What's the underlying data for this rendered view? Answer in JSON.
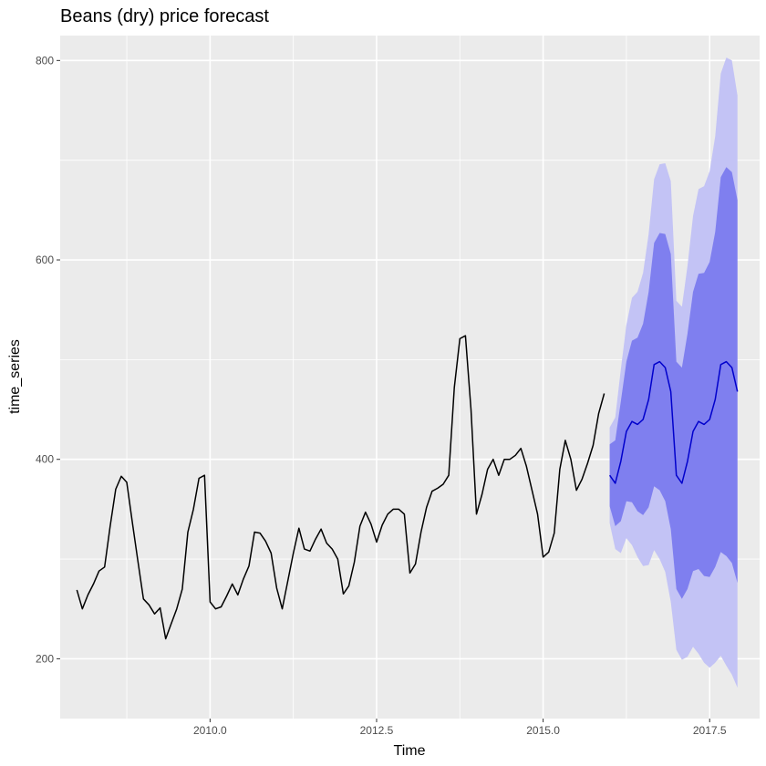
{
  "chart_data": {
    "type": "line",
    "title": "Beans (dry) price forecast",
    "xlabel": "Time",
    "ylabel": "time_series",
    "xlim": [
      2007.75,
      2018.25
    ],
    "ylim": [
      140,
      825
    ],
    "x_ticks": [
      2010.0,
      2012.5,
      2015.0,
      2017.5
    ],
    "x_tick_labels": [
      "2010.0",
      "2012.5",
      "2015.0",
      "2017.5"
    ],
    "y_ticks": [
      200,
      400,
      600,
      800
    ],
    "y_tick_labels": [
      "200",
      "400",
      "600",
      "800"
    ],
    "grid": true,
    "colors": {
      "panel_bg": "#ebebeb",
      "grid_major": "#ffffff",
      "history_line": "#000000",
      "forecast_line": "#0000cc",
      "pi_80": "#7f7fef",
      "pi_95": "#c3c3f5"
    },
    "history": {
      "start": 2008.0,
      "step": 0.0833333,
      "values": [
        269,
        250,
        264,
        275,
        288,
        292,
        333,
        370,
        383,
        377,
        337,
        298,
        260,
        254,
        245,
        251,
        220,
        235,
        250,
        270,
        327,
        350,
        381,
        384,
        257,
        250,
        252,
        263,
        275,
        264,
        280,
        293,
        327,
        326,
        318,
        306,
        271,
        250,
        278,
        306,
        331,
        310,
        308,
        320,
        330,
        316,
        310,
        300,
        265,
        273,
        297,
        333,
        347,
        335,
        317,
        334,
        345,
        350,
        350,
        345,
        286,
        295,
        327,
        352,
        368,
        371,
        375,
        384,
        472,
        521,
        524,
        450,
        345,
        365,
        390,
        400,
        384,
        400,
        400,
        404,
        411,
        393,
        369,
        345,
        302,
        307,
        326,
        390,
        419,
        400,
        369,
        380,
        396,
        414,
        446,
        466
      ]
    },
    "forecast": {
      "start": 2016.0,
      "step": 0.0833333,
      "mean": [
        384,
        376,
        398,
        428,
        438,
        435,
        440,
        460,
        495,
        498,
        492,
        468,
        384,
        376,
        398,
        428,
        438,
        435,
        440,
        460,
        495,
        498,
        492,
        468
      ],
      "lo80": [
        353,
        333,
        338,
        358,
        357,
        348,
        344,
        352,
        373,
        369,
        358,
        330,
        270,
        260,
        270,
        288,
        290,
        283,
        282,
        292,
        307,
        303,
        296,
        276
      ],
      "hi80": [
        415,
        419,
        458,
        498,
        519,
        522,
        536,
        568,
        617,
        627,
        626,
        606,
        498,
        492,
        526,
        568,
        586,
        587,
        598,
        628,
        683,
        693,
        688,
        660
      ],
      "lo95": [
        336,
        310,
        306,
        321,
        314,
        302,
        293,
        294,
        309,
        300,
        287,
        257,
        209,
        199,
        202,
        212,
        205,
        196,
        191,
        196,
        203,
        193,
        184,
        171
      ],
      "hi95": [
        432,
        442,
        490,
        535,
        562,
        568,
        587,
        626,
        681,
        696,
        697,
        679,
        559,
        553,
        594,
        644,
        671,
        674,
        689,
        724,
        787,
        803,
        800,
        765
      ]
    }
  }
}
